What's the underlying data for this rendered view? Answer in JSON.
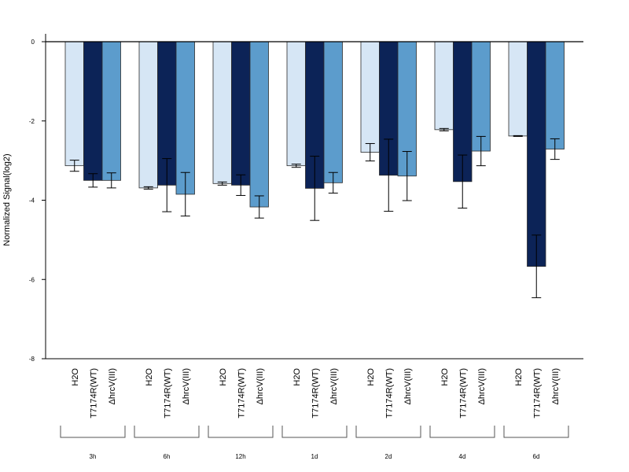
{
  "chart_data": {
    "type": "bar",
    "title": "",
    "xlabel": "",
    "ylabel": "Normalized Signal(log2)",
    "ylim": [
      -8,
      0
    ],
    "yticks": [
      0,
      -2,
      -4,
      -6,
      -8
    ],
    "groups": [
      "3h",
      "6h",
      "12h",
      "1d",
      "2d",
      "4d",
      "6d"
    ],
    "series": [
      {
        "name": "H2O",
        "color": "#d6e6f5",
        "values": [
          -3.13,
          -3.69,
          -3.58,
          -3.13,
          -2.79,
          -2.22,
          -2.38
        ],
        "errors": [
          0.14,
          0.03,
          0.04,
          0.04,
          0.22,
          0.03,
          0.01
        ]
      },
      {
        "name": "T7174R(WT)",
        "color": "#0c2357",
        "values": [
          -3.5,
          -3.62,
          -3.62,
          -3.7,
          -3.37,
          -3.53,
          -5.67
        ],
        "errors": [
          0.17,
          0.67,
          0.26,
          0.81,
          0.91,
          0.67,
          0.79
        ]
      },
      {
        "name": "ΔhrcV(III)",
        "color": "#5c9ccc",
        "values": [
          -3.5,
          -3.85,
          -4.17,
          -3.56,
          -3.39,
          -2.76,
          -2.71
        ],
        "errors": [
          0.19,
          0.55,
          0.28,
          0.26,
          0.62,
          0.37,
          0.26
        ]
      }
    ]
  }
}
